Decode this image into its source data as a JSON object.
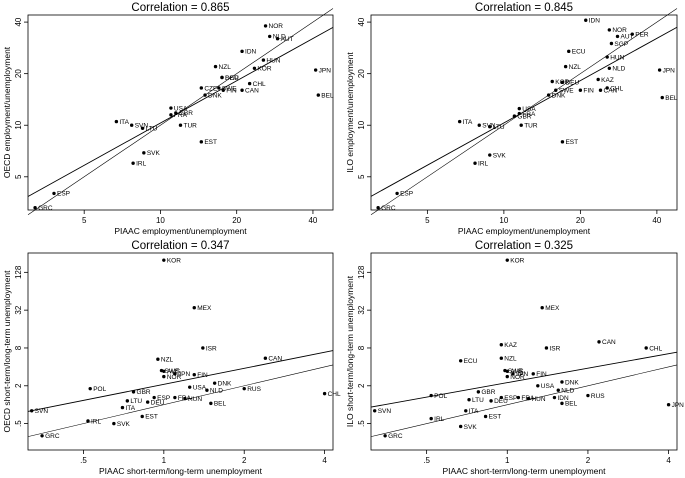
{
  "chart_data": [
    {
      "type": "scatter",
      "title": "Correlation = 0.865",
      "xlabel": "PIAAC employment/unemployment",
      "ylabel": "OECD employment/unemployment",
      "x_scale": "log",
      "y_scale": "log",
      "xlim": [
        3.0,
        48.0
      ],
      "ylim": [
        3.2,
        44.0
      ],
      "xticks": [
        5,
        10,
        20,
        40
      ],
      "yticks": [
        5,
        10,
        20,
        40
      ],
      "points": [
        {
          "label": "NOR",
          "x": 26.0,
          "y": 38.0
        },
        {
          "label": "NLD",
          "x": 27.0,
          "y": 33.0
        },
        {
          "label": "AUT",
          "x": 29.0,
          "y": 32.0
        },
        {
          "label": "IDN",
          "x": 21.0,
          "y": 27.0
        },
        {
          "label": "HUN",
          "x": 25.5,
          "y": 24.0
        },
        {
          "label": "NZL",
          "x": 16.5,
          "y": 22.0
        },
        {
          "label": "JPN",
          "x": 41.0,
          "y": 21.0
        },
        {
          "label": "KOR",
          "x": 23.5,
          "y": 21.5
        },
        {
          "label": "BEL",
          "x": 42.0,
          "y": 15.0
        },
        {
          "label": "DEU",
          "x": 17.5,
          "y": 19.0
        },
        {
          "label": "SGP",
          "x": 17.5,
          "y": 19.0
        },
        {
          "label": "CHL",
          "x": 22.5,
          "y": 17.5
        },
        {
          "label": "CAN",
          "x": 21.0,
          "y": 16.0
        },
        {
          "label": "FIN",
          "x": 17.7,
          "y": 16.0
        },
        {
          "label": "DNK",
          "x": 15.0,
          "y": 15.0
        },
        {
          "label": "CZE",
          "x": 14.5,
          "y": 16.5
        },
        {
          "label": "SWE",
          "x": 17.0,
          "y": 16.5
        },
        {
          "label": "USA",
          "x": 11.0,
          "y": 12.6
        },
        {
          "label": "GBR",
          "x": 11.5,
          "y": 11.8
        },
        {
          "label": "FRA",
          "x": 11.0,
          "y": 11.5
        },
        {
          "label": "ITA",
          "x": 6.7,
          "y": 10.5
        },
        {
          "label": "SVN",
          "x": 7.7,
          "y": 10.0
        },
        {
          "label": "LTU",
          "x": 8.5,
          "y": 9.6
        },
        {
          "label": "TUR",
          "x": 12.0,
          "y": 10.0
        },
        {
          "label": "EST",
          "x": 14.5,
          "y": 8.0
        },
        {
          "label": "SVK",
          "x": 8.6,
          "y": 6.9
        },
        {
          "label": "IRL",
          "x": 7.8,
          "y": 6.0
        },
        {
          "label": "ESP",
          "x": 3.8,
          "y": 4.0
        },
        {
          "label": "GRC",
          "x": 3.2,
          "y": 3.3
        }
      ]
    },
    {
      "type": "scatter",
      "title": "Correlation = 0.845",
      "xlabel": "PIAAC employment/unemployment",
      "ylabel": "ILO employment/unemployment",
      "x_scale": "log",
      "y_scale": "log",
      "xlim": [
        3.0,
        48.0
      ],
      "ylim": [
        3.2,
        44.0
      ],
      "xticks": [
        5,
        10,
        20,
        40
      ],
      "yticks": [
        5,
        10,
        20,
        40
      ],
      "points": [
        {
          "label": "IDN",
          "x": 21.0,
          "y": 41.0
        },
        {
          "label": "NOR",
          "x": 26.0,
          "y": 36.0
        },
        {
          "label": "PER",
          "x": 32.0,
          "y": 34.0
        },
        {
          "label": "AUT",
          "x": 28.0,
          "y": 33.0
        },
        {
          "label": "SGP",
          "x": 26.5,
          "y": 30.0
        },
        {
          "label": "ECU",
          "x": 18.0,
          "y": 27.0
        },
        {
          "label": "HUN",
          "x": 25.5,
          "y": 25.0
        },
        {
          "label": "NZL",
          "x": 17.5,
          "y": 22.0
        },
        {
          "label": "JPN",
          "x": 41.0,
          "y": 21.0
        },
        {
          "label": "NLD",
          "x": 26.0,
          "y": 21.5
        },
        {
          "label": "KAZ",
          "x": 23.5,
          "y": 18.5
        },
        {
          "label": "KOR",
          "x": 15.5,
          "y": 18.0
        },
        {
          "label": "DEU",
          "x": 17.0,
          "y": 17.8
        },
        {
          "label": "CHL",
          "x": 25.5,
          "y": 16.5
        },
        {
          "label": "CAN",
          "x": 24.0,
          "y": 16.0
        },
        {
          "label": "FIN",
          "x": 20.0,
          "y": 16.0
        },
        {
          "label": "BEL",
          "x": 42.0,
          "y": 14.5
        },
        {
          "label": "DNK",
          "x": 15.0,
          "y": 15.0
        },
        {
          "label": "SWE",
          "x": 16.0,
          "y": 16.0
        },
        {
          "label": "USA",
          "x": 11.5,
          "y": 12.5
        },
        {
          "label": "FRA",
          "x": 11.5,
          "y": 11.7
        },
        {
          "label": "GBR",
          "x": 11.0,
          "y": 11.3
        },
        {
          "label": "ITA",
          "x": 6.7,
          "y": 10.5
        },
        {
          "label": "SVN",
          "x": 8.0,
          "y": 10.0
        },
        {
          "label": "LTU",
          "x": 8.8,
          "y": 9.8
        },
        {
          "label": "TUR",
          "x": 11.7,
          "y": 10.0
        },
        {
          "label": "EST",
          "x": 17.0,
          "y": 8.0
        },
        {
          "label": "SVK",
          "x": 8.8,
          "y": 6.7
        },
        {
          "label": "IRL",
          "x": 7.7,
          "y": 6.0
        },
        {
          "label": "ESP",
          "x": 3.8,
          "y": 4.0
        },
        {
          "label": "GRC",
          "x": 3.2,
          "y": 3.3
        }
      ]
    },
    {
      "type": "scatter",
      "title": "Correlation = 0.347",
      "xlabel": "PIAAC short-term/long-term unemployment",
      "ylabel": "OECD short-term/long-term unemployment",
      "x_scale": "log",
      "y_scale": "log",
      "xlim": [
        0.31,
        4.3
      ],
      "ylim": [
        0.19,
        260
      ],
      "xticks": [
        0.5,
        1,
        2,
        4
      ],
      "yticks": [
        0.5,
        2,
        8,
        32,
        128
      ],
      "xticklabels": [
        ".5",
        "1",
        "2",
        "4"
      ],
      "yticklabels": [
        ".5",
        "2",
        "8",
        "32",
        "128"
      ],
      "points": [
        {
          "label": "KOR",
          "x": 1.0,
          "y": 200
        },
        {
          "label": "MEX",
          "x": 1.3,
          "y": 35
        },
        {
          "label": "ISR",
          "x": 1.4,
          "y": 8.0
        },
        {
          "label": "CAN",
          "x": 2.4,
          "y": 5.5
        },
        {
          "label": "NZL",
          "x": 0.95,
          "y": 5.3
        },
        {
          "label": "SWE",
          "x": 0.98,
          "y": 3.5
        },
        {
          "label": "AUS",
          "x": 1.0,
          "y": 3.4
        },
        {
          "label": "JPN",
          "x": 1.1,
          "y": 3.1
        },
        {
          "label": "FIN",
          "x": 1.3,
          "y": 3.0
        },
        {
          "label": "NOR",
          "x": 1.0,
          "y": 2.8
        },
        {
          "label": "DNK",
          "x": 1.55,
          "y": 2.2
        },
        {
          "label": "USA",
          "x": 1.25,
          "y": 1.9
        },
        {
          "label": "RUS",
          "x": 2.0,
          "y": 1.8
        },
        {
          "label": "NLD",
          "x": 1.45,
          "y": 1.7
        },
        {
          "label": "POL",
          "x": 0.53,
          "y": 1.8
        },
        {
          "label": "GBR",
          "x": 0.77,
          "y": 1.6
        },
        {
          "label": "CHL",
          "x": 4.0,
          "y": 1.5
        },
        {
          "label": "ESP",
          "x": 0.92,
          "y": 1.3
        },
        {
          "label": "FRA",
          "x": 1.1,
          "y": 1.3
        },
        {
          "label": "HUN",
          "x": 1.2,
          "y": 1.25
        },
        {
          "label": "LTU",
          "x": 0.73,
          "y": 1.15
        },
        {
          "label": "DEU",
          "x": 0.87,
          "y": 1.1
        },
        {
          "label": "BEL",
          "x": 1.5,
          "y": 1.05
        },
        {
          "label": "ITA",
          "x": 0.7,
          "y": 0.9
        },
        {
          "label": "SVN",
          "x": 0.32,
          "y": 0.8
        },
        {
          "label": "EST",
          "x": 0.83,
          "y": 0.65
        },
        {
          "label": "IRL",
          "x": 0.52,
          "y": 0.55
        },
        {
          "label": "SVK",
          "x": 0.65,
          "y": 0.5
        },
        {
          "label": "GRC",
          "x": 0.35,
          "y": 0.32
        }
      ]
    },
    {
      "type": "scatter",
      "title": "Correlation = 0.325",
      "xlabel": "PIAAC short-term/long-term unemployment",
      "ylabel": "ILO short-term/long-term unemployment",
      "x_scale": "log",
      "y_scale": "log",
      "xlim": [
        0.31,
        4.3
      ],
      "ylim": [
        0.19,
        260
      ],
      "xticks": [
        0.5,
        1,
        2,
        4
      ],
      "yticks": [
        0.5,
        2,
        8,
        32,
        128
      ],
      "xticklabels": [
        ".5",
        "1",
        "2",
        "4"
      ],
      "yticklabels": [
        ".5",
        "2",
        "8",
        "32",
        "128"
      ],
      "points": [
        {
          "label": "KOR",
          "x": 1.0,
          "y": 200
        },
        {
          "label": "MEX",
          "x": 1.35,
          "y": 35
        },
        {
          "label": "CAN",
          "x": 2.2,
          "y": 10
        },
        {
          "label": "KAZ",
          "x": 0.95,
          "y": 9.0
        },
        {
          "label": "ISR",
          "x": 1.4,
          "y": 8.0
        },
        {
          "label": "CHL",
          "x": 3.3,
          "y": 8.0
        },
        {
          "label": "NZL",
          "x": 0.95,
          "y": 5.5
        },
        {
          "label": "ECU",
          "x": 0.67,
          "y": 5.0
        },
        {
          "label": "SWE",
          "x": 0.98,
          "y": 3.5
        },
        {
          "label": "AUS",
          "x": 1.0,
          "y": 3.4
        },
        {
          "label": "FIN",
          "x": 1.25,
          "y": 3.1
        },
        {
          "label": "JPN",
          "x": 1.05,
          "y": 3.1
        },
        {
          "label": "NOR",
          "x": 1.0,
          "y": 2.8
        },
        {
          "label": "DNK",
          "x": 1.6,
          "y": 2.3
        },
        {
          "label": "USA",
          "x": 1.3,
          "y": 2.0
        },
        {
          "label": "NLD",
          "x": 1.55,
          "y": 1.7
        },
        {
          "label": "GBR",
          "x": 0.78,
          "y": 1.6
        },
        {
          "label": "POL",
          "x": 0.52,
          "y": 1.4
        },
        {
          "label": "RUS",
          "x": 2.0,
          "y": 1.4
        },
        {
          "label": "ESP",
          "x": 0.95,
          "y": 1.3
        },
        {
          "label": "FRA",
          "x": 1.1,
          "y": 1.3
        },
        {
          "label": "HUN",
          "x": 1.2,
          "y": 1.25
        },
        {
          "label": "IDN",
          "x": 1.5,
          "y": 1.3
        },
        {
          "label": "LTU",
          "x": 0.72,
          "y": 1.2
        },
        {
          "label": "DEU",
          "x": 0.87,
          "y": 1.15
        },
        {
          "label": "BEL",
          "x": 1.6,
          "y": 1.05
        },
        {
          "label": "ITA",
          "x": 0.7,
          "y": 0.8
        },
        {
          "label": "JPN",
          "x": 4.0,
          "y": 1.0
        },
        {
          "label": "SVN",
          "x": 0.32,
          "y": 0.8
        },
        {
          "label": "EST",
          "x": 0.83,
          "y": 0.65
        },
        {
          "label": "IRL",
          "x": 0.52,
          "y": 0.6
        },
        {
          "label": "SVK",
          "x": 0.67,
          "y": 0.45
        },
        {
          "label": "GRC",
          "x": 0.35,
          "y": 0.32
        }
      ]
    }
  ]
}
